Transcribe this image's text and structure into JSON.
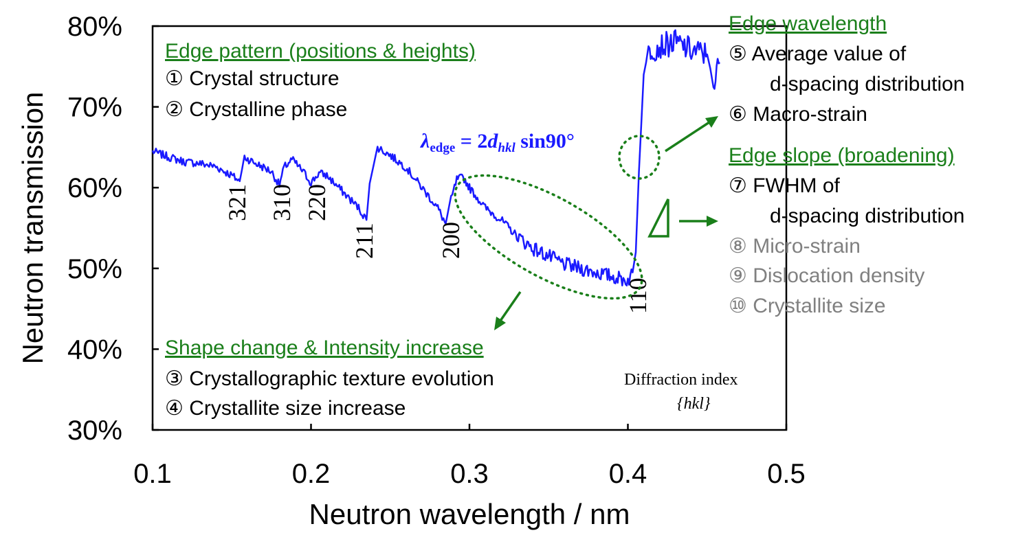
{
  "chart_data": {
    "type": "line",
    "xlabel": "Neutron wavelength / nm",
    "ylabel": "Neutron transmission",
    "xlim": [
      0.1,
      0.5
    ],
    "ylim": [
      30,
      80
    ],
    "xticks": [
      "0.1",
      "0.2",
      "0.3",
      "0.4",
      "0.5"
    ],
    "yticks": [
      "30%",
      "40%",
      "50%",
      "60%",
      "70%",
      "80%"
    ],
    "grid": false,
    "series": [
      {
        "color": "#1a1aff",
        "x": [
          0.1,
          0.11,
          0.12,
          0.13,
          0.14,
          0.15,
          0.155,
          0.158,
          0.165,
          0.175,
          0.18,
          0.183,
          0.188,
          0.195,
          0.2,
          0.205,
          0.21,
          0.22,
          0.23,
          0.235,
          0.237,
          0.242,
          0.25,
          0.26,
          0.27,
          0.28,
          0.285,
          0.287,
          0.292,
          0.296,
          0.3,
          0.31,
          0.32,
          0.33,
          0.34,
          0.35,
          0.36,
          0.37,
          0.38,
          0.39,
          0.4,
          0.403,
          0.405,
          0.407,
          0.41,
          0.413,
          0.42,
          0.43,
          0.44,
          0.45,
          0.454,
          0.458
        ],
        "y": [
          64.5,
          63.8,
          63.2,
          63.0,
          62.6,
          61.5,
          60.8,
          63.8,
          63.0,
          62.0,
          60.3,
          62.5,
          63.5,
          62.0,
          60.6,
          61.8,
          61.5,
          59.5,
          57.5,
          56.0,
          60.5,
          65.0,
          64.0,
          62.5,
          60.0,
          57.5,
          55.5,
          57.5,
          61.0,
          61.3,
          60.0,
          57.5,
          56.0,
          54.0,
          52.5,
          51.5,
          50.5,
          50.0,
          49.5,
          49.0,
          48.5,
          49.5,
          52.0,
          62.0,
          74.0,
          77.0,
          77.5,
          78.0,
          77.0,
          76.5,
          73.0,
          75.5
        ]
      }
    ],
    "peak_labels": [
      {
        "text": "321",
        "x": 0.155
      },
      {
        "text": "310",
        "x": 0.182
      },
      {
        "text": "220",
        "x": 0.203
      },
      {
        "text": "211",
        "x": 0.235
      },
      {
        "text": "200",
        "x": 0.287
      },
      {
        "text": "110",
        "x": 0.405
      }
    ]
  },
  "annotations": {
    "edge_pattern_title": "Edge pattern (positions & heights)",
    "item1": "① Crystal structure",
    "item2": "② Crystalline phase",
    "formula_lambda": "λ",
    "formula_edge": "edge",
    "formula_mid": " = 2",
    "formula_d": "d",
    "formula_hkl": "hkl",
    "formula_end": " sin90°",
    "shape_title": "Shape change & Intensity increase",
    "item3": "③ Crystallographic texture evolution",
    "item4": "④ Crystallite size increase",
    "edge_wavelength_title": "Edge wavelength",
    "item5a": "⑤ Average value of",
    "item5b": "d-spacing distribution",
    "item6": "⑥ Macro-strain",
    "edge_slope_title": "Edge slope (broadening)",
    "item7a": "⑦ FWHM of",
    "item7b": "d-spacing distribution",
    "item8": "⑧ Micro-strain",
    "item9": "⑨ Dislocation density",
    "item10": "⑩ Crystallite size",
    "diffraction_index": "Diffraction index",
    "hkl_braces": "{hkl}"
  },
  "colors": {
    "accent_green": "#1a7f1a",
    "line_blue": "#1a1aff",
    "gray": "#808080"
  }
}
